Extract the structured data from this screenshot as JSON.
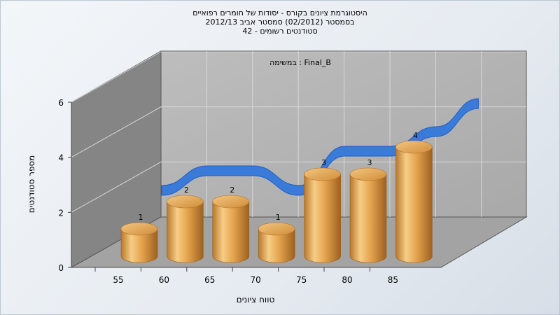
{
  "title_lines": [
    "היסטוגרמת ציונים בקורס - יסודות של חומרים רפואיים",
    "בסמסטר  (02/2012)  סמסטר אביב 2012/13",
    "סטודנטים רשומים - 42"
  ],
  "chart_data": {
    "type": "bar",
    "title": "היסטוגרמת ציונים בקורס - יסודות של חומרים רפואיים",
    "subtitle": "בסמסטר  (02/2012)  סמסטר אביב 2012/13 | סטודנטים רשומים - 42",
    "annotation": "במשימה : Final_B",
    "xlabel": "טווח ציונים",
    "ylabel": "מספר סטודנטים",
    "categories": [
      "55",
      "60",
      "65",
      "70",
      "75",
      "80",
      "85"
    ],
    "values": [
      1,
      2,
      2,
      1,
      3,
      3,
      4
    ],
    "y_ticks": [
      "0",
      "2",
      "4",
      "6"
    ],
    "ylim": [
      0,
      6
    ],
    "grid": true,
    "bar_color": "#e3a14a",
    "curve_color": "#2f73d1",
    "back_wall_color": "#b3b3b3",
    "side_wall_color": "#888888",
    "floor_color": "#a6a6a6"
  }
}
